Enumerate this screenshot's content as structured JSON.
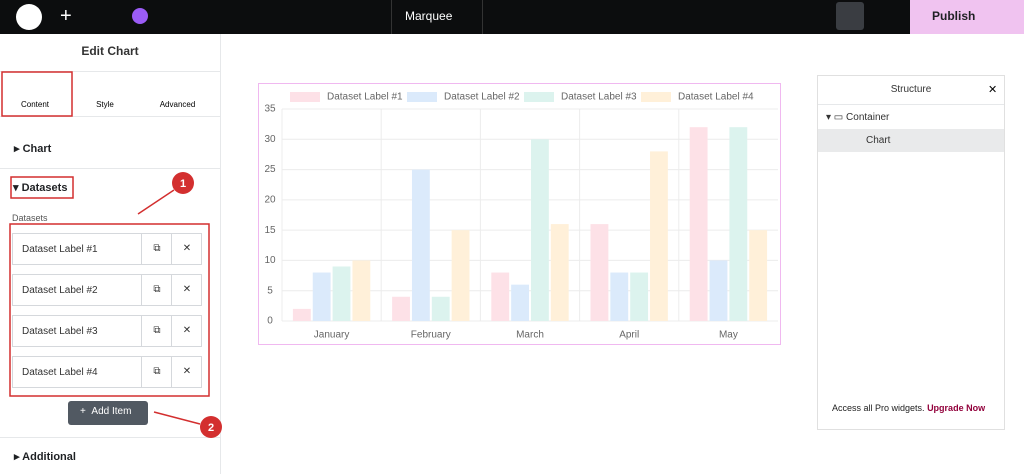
{
  "top_bar": {
    "page_name": "Marquee",
    "publish": "Publish"
  },
  "panel": {
    "title": "Edit Chart",
    "tabs": [
      "Content",
      "Style",
      "Advanced"
    ],
    "section_chart": "Chart",
    "section_datasets": "Datasets",
    "datasets_label": "Datasets",
    "items": [
      "Dataset Label #1",
      "Dataset Label #2",
      "Dataset Label #3",
      "Dataset Label #4"
    ],
    "add_item": "Add Item",
    "section_additional": "Additional"
  },
  "annotations": [
    "1",
    "2"
  ],
  "chart_data": {
    "type": "bar",
    "categories": [
      "January",
      "February",
      "March",
      "April",
      "May"
    ],
    "series": [
      {
        "name": "Dataset Label #1",
        "color": "#fde1e7",
        "values": [
          2,
          4,
          8,
          16,
          32
        ]
      },
      {
        "name": "Dataset Label #2",
        "color": "#dbeafb",
        "values": [
          8,
          25,
          6,
          8,
          10
        ]
      },
      {
        "name": "Dataset Label #3",
        "color": "#dcf3ee",
        "values": [
          9,
          4,
          30,
          8,
          32
        ]
      },
      {
        "name": "Dataset Label #4",
        "color": "#fff0d9",
        "values": [
          10,
          15,
          16,
          28,
          15
        ]
      }
    ],
    "ylim": [
      0,
      35
    ],
    "yticks": [
      0,
      5,
      10,
      15,
      20,
      25,
      30,
      35
    ],
    "grid": true,
    "legend": "top"
  },
  "structure": {
    "title": "Structure",
    "container": "Container",
    "chart": "Chart",
    "promo": "Access all Pro widgets.",
    "upgrade": "Upgrade Now"
  }
}
